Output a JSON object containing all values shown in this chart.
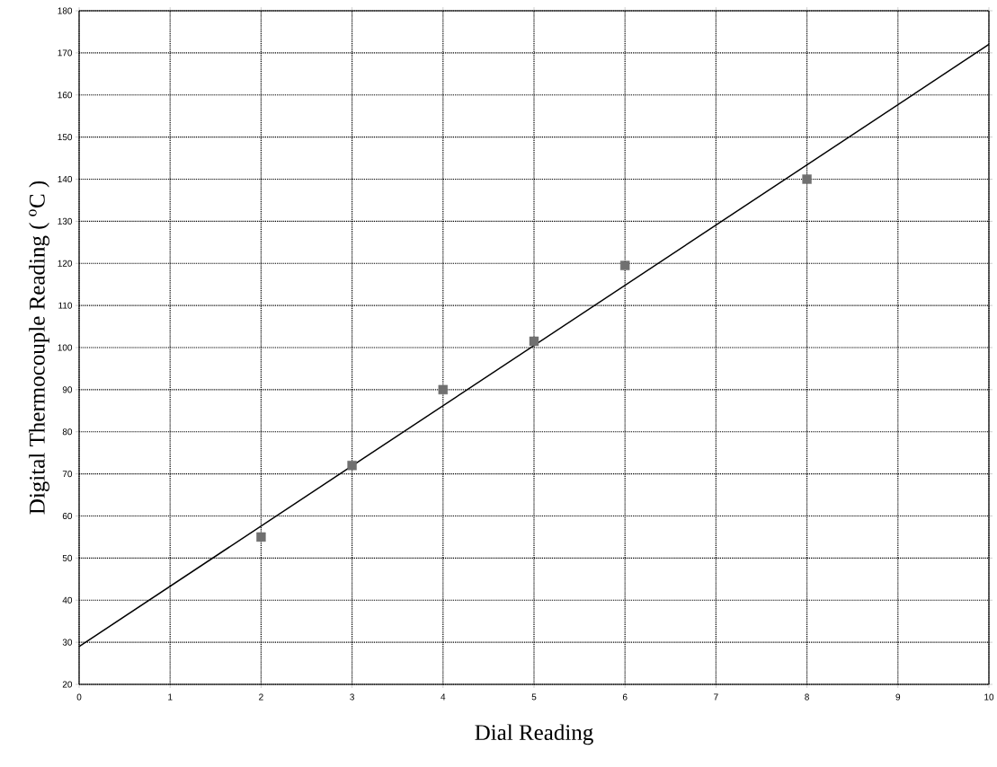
{
  "chart_data": {
    "type": "scatter",
    "xlabel": "Dial Reading",
    "ylabel": "Digital Thermocouple Reading ( $^{o}$C )",
    "xlim": [
      0,
      10
    ],
    "ylim": [
      20,
      180
    ],
    "xticks": [
      0,
      1,
      2,
      3,
      4,
      5,
      6,
      7,
      8,
      9,
      10
    ],
    "yticks": [
      20,
      30,
      40,
      50,
      60,
      70,
      80,
      90,
      100,
      110,
      120,
      130,
      140,
      150,
      160,
      170,
      180
    ],
    "grid": true,
    "series": [
      {
        "color": "#707070",
        "marker": "square",
        "x": [
          2,
          3,
          4,
          5,
          6,
          8
        ],
        "values": [
          55,
          72,
          90,
          101.5,
          119.5,
          140
        ]
      },
      {
        "type": "line",
        "color": "#000000",
        "marker": "none",
        "line_style": "solid",
        "x": [
          0,
          10
        ],
        "values": [
          29,
          172
        ]
      }
    ]
  }
}
